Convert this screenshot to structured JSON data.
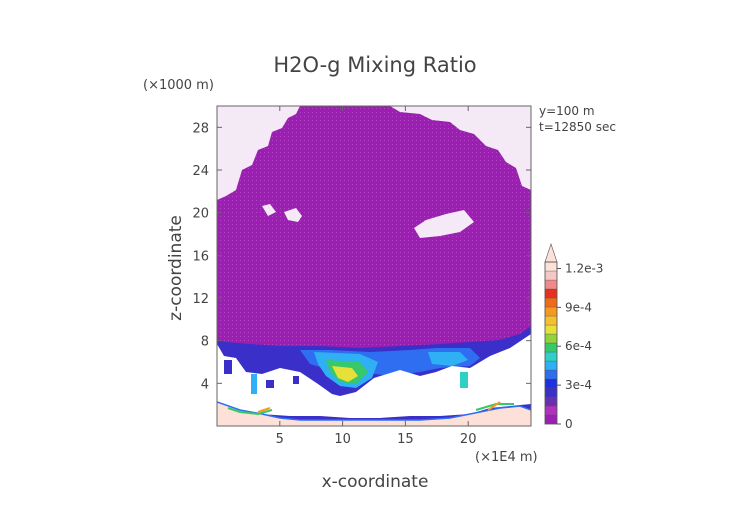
{
  "chart_data": {
    "type": "heatmap",
    "title": "H2O-g Mixing Ratio",
    "xlabel": "x-coordinate",
    "ylabel": "z-coordinate",
    "x_units": "(×1E4 m)",
    "y_units": "(×1000 m)",
    "info": [
      "y=100 m",
      "t=12850 sec"
    ],
    "xlim": [
      0,
      25
    ],
    "ylim": [
      0,
      30
    ],
    "x_ticks": [
      5,
      10,
      15,
      20
    ],
    "y_ticks": [
      4,
      8,
      12,
      16,
      20,
      24,
      28
    ],
    "colorbar": {
      "range": [
        0,
        0.00125
      ],
      "tick_values": [
        0,
        0.0003,
        0.0006,
        0.0009,
        0.0012
      ],
      "tick_labels": [
        "0",
        "3e-4",
        "6e-4",
        "9e-4",
        "1.2e-3"
      ],
      "extend": "max",
      "colors": [
        "#9b1fb0",
        "#b030c0",
        "#6a2fb0",
        "#3a2fc8",
        "#2030e0",
        "#2f6ef0",
        "#2fb0f5",
        "#2fd0c8",
        "#36c86a",
        "#8fd43a",
        "#e6e03a",
        "#f5c030",
        "#f59a20",
        "#f06a18",
        "#e83020",
        "#f08a8a",
        "#f5c8c8",
        "#fde0d8"
      ]
    },
    "features": {
      "upper_dry_layer_mixing_ratio": 1e-05,
      "moist_layer_top_z": 8,
      "max_value_near": {
        "x": 9,
        "z": 4.5,
        "value": 0.0006
      }
    }
  }
}
